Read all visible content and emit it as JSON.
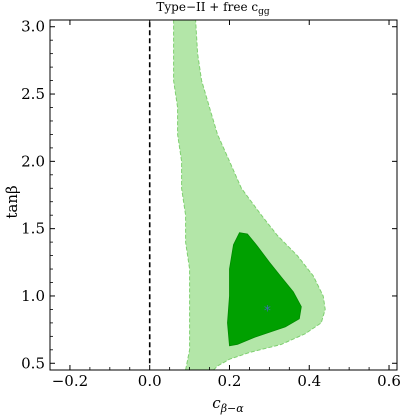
{
  "chart_data": {
    "type": "contour",
    "title": "Type−II + free c",
    "title_subscript": "gg",
    "xlabel": "c",
    "xlabel_subscript": "β−α",
    "ylabel": "tanβ",
    "xlim": [
      -0.25,
      0.62
    ],
    "ylim": [
      0.45,
      3.05
    ],
    "xticks": [
      "−0.2",
      "0.0",
      "0.2",
      "0.4",
      "0.6"
    ],
    "xtick_values": [
      -0.2,
      0.0,
      0.2,
      0.4,
      0.6
    ],
    "yticks": [
      "0.5",
      "1.0",
      "1.5",
      "2.0",
      "2.5",
      "3.0"
    ],
    "ytick_values": [
      0.5,
      1.0,
      1.5,
      2.0,
      2.5,
      3.0
    ],
    "reference_line": {
      "x": 0.0,
      "y_range": [
        0.5,
        3.05
      ],
      "style": "dashed",
      "color": "#000000"
    },
    "regions": [
      {
        "level": "outer",
        "fill": "#b3e6a8",
        "stroke": "#7fcf70",
        "points": [
          [
            0.09,
            0.45
          ],
          [
            0.1,
            0.6
          ],
          [
            0.1,
            0.8
          ],
          [
            0.1,
            1.0
          ],
          [
            0.1,
            1.2
          ],
          [
            0.09,
            1.4
          ],
          [
            0.09,
            1.6
          ],
          [
            0.08,
            1.8
          ],
          [
            0.08,
            2.0
          ],
          [
            0.07,
            2.2
          ],
          [
            0.07,
            2.4
          ],
          [
            0.06,
            2.6
          ],
          [
            0.06,
            2.8
          ],
          [
            0.06,
            3.05
          ],
          [
            0.115,
            3.05
          ],
          [
            0.12,
            2.8
          ],
          [
            0.13,
            2.6
          ],
          [
            0.15,
            2.4
          ],
          [
            0.17,
            2.2
          ],
          [
            0.2,
            2.0
          ],
          [
            0.23,
            1.8
          ],
          [
            0.28,
            1.6
          ],
          [
            0.32,
            1.45
          ],
          [
            0.37,
            1.3
          ],
          [
            0.41,
            1.15
          ],
          [
            0.435,
            1.0
          ],
          [
            0.44,
            0.9
          ],
          [
            0.43,
            0.8
          ],
          [
            0.39,
            0.72
          ],
          [
            0.33,
            0.64
          ],
          [
            0.25,
            0.58
          ],
          [
            0.2,
            0.53
          ],
          [
            0.17,
            0.48
          ],
          [
            0.16,
            0.45
          ]
        ]
      },
      {
        "level": "inner",
        "fill": "#00a000",
        "stroke": "#008a00",
        "points": [
          [
            0.2,
            0.63
          ],
          [
            0.195,
            0.8
          ],
          [
            0.2,
            1.0
          ],
          [
            0.2,
            1.2
          ],
          [
            0.21,
            1.38
          ],
          [
            0.225,
            1.47
          ],
          [
            0.245,
            1.46
          ],
          [
            0.27,
            1.37
          ],
          [
            0.3,
            1.25
          ],
          [
            0.33,
            1.14
          ],
          [
            0.36,
            1.03
          ],
          [
            0.38,
            0.92
          ],
          [
            0.375,
            0.83
          ],
          [
            0.34,
            0.77
          ],
          [
            0.3,
            0.73
          ],
          [
            0.26,
            0.69
          ],
          [
            0.22,
            0.64
          ]
        ]
      }
    ],
    "best_fit": {
      "x": 0.295,
      "y": 0.9,
      "marker": "*",
      "color": "#3a6db0"
    }
  }
}
